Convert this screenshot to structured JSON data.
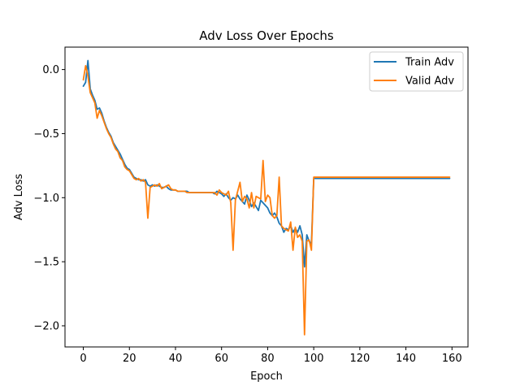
{
  "chart_data": {
    "type": "line",
    "title": "Adv Loss Over Epochs",
    "xlabel": "Epoch",
    "ylabel": "Adv Loss",
    "xlim": [
      -7.95,
      166.95
    ],
    "ylim": [
      -2.165,
      0.175
    ],
    "xticks": [
      0,
      20,
      40,
      60,
      80,
      100,
      120,
      140,
      160
    ],
    "xtick_labels": [
      "0",
      "20",
      "40",
      "60",
      "80",
      "100",
      "120",
      "140",
      "160"
    ],
    "yticks": [
      0.0,
      -0.5,
      -1.0,
      -1.5,
      -2.0
    ],
    "ytick_labels": [
      "0.0",
      "−0.5",
      "−1.0",
      "−1.5",
      "−2.0"
    ],
    "grid": false,
    "legend": "upper-right",
    "series": [
      {
        "name": "Train Adv",
        "color": "#1f77b4",
        "x": [
          0,
          1,
          2,
          3,
          4,
          5,
          6,
          7,
          8,
          9,
          10,
          11,
          12,
          13,
          14,
          15,
          16,
          17,
          18,
          19,
          20,
          21,
          22,
          23,
          24,
          25,
          26,
          27,
          28,
          29,
          30,
          31,
          32,
          33,
          34,
          35,
          36,
          37,
          38,
          39,
          40,
          41,
          42,
          43,
          44,
          45,
          46,
          47,
          48,
          49,
          50,
          51,
          52,
          53,
          54,
          55,
          56,
          57,
          58,
          59,
          60,
          61,
          62,
          63,
          64,
          65,
          66,
          67,
          68,
          69,
          70,
          71,
          72,
          73,
          74,
          75,
          76,
          77,
          78,
          79,
          80,
          81,
          82,
          83,
          84,
          85,
          86,
          87,
          88,
          89,
          90,
          91,
          92,
          93,
          94,
          95,
          96,
          97,
          98,
          99,
          100,
          110,
          120,
          130,
          140,
          150,
          159
        ],
        "y": [
          -0.13,
          -0.1,
          0.07,
          -0.15,
          -0.2,
          -0.24,
          -0.31,
          -0.3,
          -0.34,
          -0.4,
          -0.45,
          -0.49,
          -0.52,
          -0.57,
          -0.6,
          -0.63,
          -0.66,
          -0.7,
          -0.74,
          -0.77,
          -0.78,
          -0.81,
          -0.84,
          -0.85,
          -0.86,
          -0.86,
          -0.87,
          -0.86,
          -0.9,
          -0.91,
          -0.9,
          -0.91,
          -0.9,
          -0.91,
          -0.92,
          -0.92,
          -0.91,
          -0.93,
          -0.94,
          -0.94,
          -0.94,
          -0.95,
          -0.95,
          -0.95,
          -0.95,
          -0.95,
          -0.96,
          -0.96,
          -0.96,
          -0.96,
          -0.96,
          -0.96,
          -0.96,
          -0.96,
          -0.96,
          -0.96,
          -0.96,
          -0.97,
          -0.95,
          -0.96,
          -0.97,
          -0.99,
          -0.97,
          -1.0,
          -1.02,
          -1.0,
          -1.01,
          -0.98,
          -1.01,
          -1.03,
          -1.05,
          -0.98,
          -1.02,
          -1.07,
          -1.04,
          -1.07,
          -1.1,
          -1.02,
          -1.04,
          -1.06,
          -1.08,
          -1.12,
          -1.14,
          -1.12,
          -1.15,
          -1.2,
          -1.22,
          -1.27,
          -1.24,
          -1.25,
          -1.22,
          -1.27,
          -1.24,
          -1.27,
          -1.22,
          -1.29,
          -1.54,
          -1.29,
          -1.34,
          -1.36,
          -0.85,
          -0.85,
          -0.85,
          -0.85,
          -0.85,
          -0.85,
          -0.85
        ]
      },
      {
        "name": "Valid Adv",
        "color": "#ff7f0e",
        "x": [
          0,
          1,
          2,
          3,
          4,
          5,
          6,
          7,
          8,
          9,
          10,
          11,
          12,
          13,
          14,
          15,
          16,
          17,
          18,
          19,
          20,
          21,
          22,
          23,
          24,
          25,
          26,
          27,
          28,
          29,
          30,
          31,
          32,
          33,
          34,
          35,
          36,
          37,
          38,
          39,
          40,
          41,
          42,
          43,
          44,
          45,
          46,
          47,
          48,
          49,
          50,
          51,
          52,
          53,
          54,
          55,
          56,
          57,
          58,
          59,
          60,
          61,
          62,
          63,
          64,
          65,
          66,
          67,
          68,
          69,
          70,
          71,
          72,
          73,
          74,
          75,
          76,
          77,
          78,
          79,
          80,
          81,
          82,
          83,
          84,
          85,
          86,
          87,
          88,
          89,
          90,
          91,
          92,
          93,
          94,
          95,
          96,
          97,
          98,
          99,
          100,
          110,
          120,
          130,
          140,
          150,
          159
        ],
        "y": [
          -0.08,
          0.03,
          -0.05,
          -0.18,
          -0.22,
          -0.26,
          -0.38,
          -0.32,
          -0.36,
          -0.41,
          -0.46,
          -0.5,
          -0.53,
          -0.58,
          -0.62,
          -0.64,
          -0.69,
          -0.71,
          -0.76,
          -0.78,
          -0.79,
          -0.82,
          -0.85,
          -0.86,
          -0.85,
          -0.87,
          -0.86,
          -0.88,
          -1.16,
          -0.92,
          -0.91,
          -0.9,
          -0.91,
          -0.89,
          -0.93,
          -0.92,
          -0.91,
          -0.9,
          -0.93,
          -0.94,
          -0.94,
          -0.95,
          -0.95,
          -0.95,
          -0.95,
          -0.96,
          -0.96,
          -0.96,
          -0.96,
          -0.96,
          -0.96,
          -0.96,
          -0.96,
          -0.96,
          -0.96,
          -0.96,
          -0.96,
          -0.96,
          -0.98,
          -0.94,
          -0.96,
          -0.97,
          -0.98,
          -0.95,
          -1.04,
          -1.41,
          -1.02,
          -0.95,
          -0.88,
          -1.03,
          -0.99,
          -1.01,
          -1.08,
          -0.96,
          -1.08,
          -0.99,
          -1.0,
          -1.01,
          -0.71,
          -1.03,
          -0.98,
          -1.0,
          -1.14,
          -1.16,
          -1.14,
          -0.84,
          -1.22,
          -1.24,
          -1.25,
          -1.26,
          -1.19,
          -1.41,
          -1.23,
          -1.31,
          -1.29,
          -1.34,
          -2.07,
          -1.34,
          -1.33,
          -1.41,
          -0.84,
          -0.84,
          -0.84,
          -0.84,
          -0.84,
          -0.84,
          -0.84
        ]
      }
    ]
  }
}
